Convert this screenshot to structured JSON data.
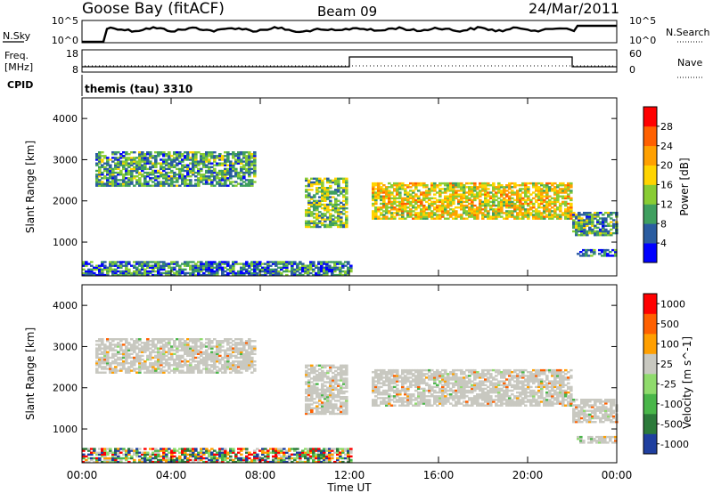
{
  "header": {
    "station": "Goose Bay (fitACF)",
    "beam": "Beam 09",
    "date": "24/Mar/2011"
  },
  "noise_panel": {
    "left_label": "N.Sky",
    "right_label": "N.Search",
    "left_ticks": [
      "10^5",
      "10^0"
    ],
    "right_ticks": [
      "10^5",
      "10^0"
    ]
  },
  "freq_panel": {
    "left_label_line1": "Freq.",
    "left_label_line2": "[MHz]",
    "right_label": "Nave",
    "left_ticks": [
      "18",
      "8"
    ],
    "right_ticks": [
      "60",
      "0"
    ]
  },
  "cpid": {
    "label": "CPID",
    "value": "themis (tau) 3310"
  },
  "chart_data": [
    {
      "type": "heatmap",
      "title": "Power",
      "ylabel": "Slant Range [km]",
      "ylim": [
        180,
        4500
      ],
      "yticks": [
        "1000",
        "2000",
        "3000",
        "4000"
      ],
      "colorbar": {
        "label": "Power [dB]",
        "ticks": [
          "4",
          "8",
          "12",
          "16",
          "20",
          "24",
          "28"
        ],
        "range": [
          0,
          32
        ],
        "colors": [
          "#0000ff",
          "#2a5ca0",
          "#3f9f5f",
          "#88cc33",
          "#ffd400",
          "#ffa000",
          "#ff6000",
          "#ff0000"
        ]
      },
      "echo_regions": [
        {
          "t0": 0.6,
          "t1": 7.8,
          "r0": 2350,
          "r1": 3200,
          "power_db": 10
        },
        {
          "t0": 10.0,
          "t1": 11.9,
          "r0": 1350,
          "r1": 2550,
          "power_db": 12
        },
        {
          "t0": 13.0,
          "t1": 21.9,
          "r0": 1550,
          "r1": 2450,
          "power_db": 18
        },
        {
          "t0": 22.0,
          "t1": 24.0,
          "r0": 1150,
          "r1": 1700,
          "power_db": 10
        },
        {
          "t0": 22.2,
          "t1": 24.0,
          "r0": 650,
          "r1": 800,
          "power_db": 6
        },
        {
          "t0": 0.0,
          "t1": 12.0,
          "r0": 180,
          "r1": 500,
          "power_db": 8
        }
      ]
    },
    {
      "type": "heatmap",
      "title": "Velocity",
      "ylabel": "Slant Range [km]",
      "ylim": [
        180,
        4500
      ],
      "yticks": [
        "1000",
        "2000",
        "3000",
        "4000"
      ],
      "colorbar": {
        "label": "Velocity [m s^-1]",
        "ticks": [
          "1000",
          "500",
          "100",
          "25",
          "-25",
          "-100",
          "-500",
          "-1000"
        ],
        "colors": [
          "#1f3f9f",
          "#2c7a3a",
          "#49b649",
          "#8fdb6c",
          "#c8c8c0",
          "#ff9f00",
          "#ff6000",
          "#ff0000"
        ]
      },
      "echo_regions": [
        {
          "t0": 0.6,
          "t1": 7.8,
          "r0": 2350,
          "r1": 3200,
          "velocity": 0
        },
        {
          "t0": 10.0,
          "t1": 11.9,
          "r0": 1350,
          "r1": 2550,
          "velocity": 0
        },
        {
          "t0": 13.0,
          "t1": 21.9,
          "r0": 1550,
          "r1": 2450,
          "velocity": 0
        },
        {
          "t0": 22.0,
          "t1": 24.0,
          "r0": 1150,
          "r1": 1700,
          "velocity": 0
        },
        {
          "t0": 22.2,
          "t1": 24.0,
          "r0": 650,
          "r1": 800,
          "velocity": 0
        },
        {
          "t0": 0.0,
          "t1": 12.0,
          "r0": 180,
          "r1": 500,
          "velocity": 50
        }
      ]
    }
  ],
  "xaxis": {
    "label": "Time UT",
    "ticks": [
      "00:00",
      "04:00",
      "08:00",
      "12:00",
      "16:00",
      "20:00",
      "00:00"
    ],
    "range_hours": [
      0,
      24
    ]
  }
}
